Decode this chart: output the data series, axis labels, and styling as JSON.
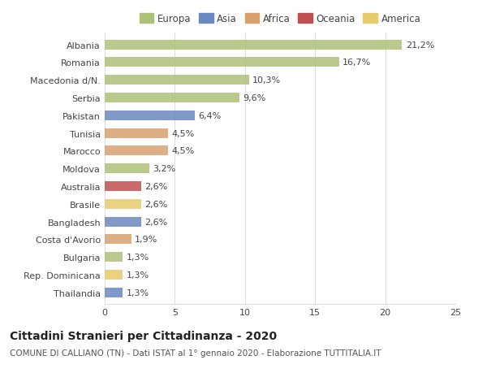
{
  "countries": [
    "Albania",
    "Romania",
    "Macedonia d/N.",
    "Serbia",
    "Pakistan",
    "Tunisia",
    "Marocco",
    "Moldova",
    "Australia",
    "Brasile",
    "Bangladesh",
    "Costa d'Avorio",
    "Bulgaria",
    "Rep. Dominicana",
    "Thailandia"
  ],
  "values": [
    21.2,
    16.7,
    10.3,
    9.6,
    6.4,
    4.5,
    4.5,
    3.2,
    2.6,
    2.6,
    2.6,
    1.9,
    1.3,
    1.3,
    1.3
  ],
  "labels": [
    "21,2%",
    "16,7%",
    "10,3%",
    "9,6%",
    "6,4%",
    "4,5%",
    "4,5%",
    "3,2%",
    "2,6%",
    "2,6%",
    "2,6%",
    "1,9%",
    "1,3%",
    "1,3%",
    "1,3%"
  ],
  "colors": [
    "#adc178",
    "#adc178",
    "#adc178",
    "#adc178",
    "#6b88c0",
    "#d9a06e",
    "#d9a06e",
    "#adc178",
    "#bf5050",
    "#e8cb6a",
    "#6b88c0",
    "#d9a06e",
    "#adc178",
    "#e8cb6a",
    "#6b88c0"
  ],
  "legend": [
    {
      "label": "Europa",
      "color": "#adc178"
    },
    {
      "label": "Asia",
      "color": "#6b88c0"
    },
    {
      "label": "Africa",
      "color": "#d9a06e"
    },
    {
      "label": "Oceania",
      "color": "#bf5050"
    },
    {
      "label": "America",
      "color": "#e8cb6a"
    }
  ],
  "title": "Cittadini Stranieri per Cittadinanza - 2020",
  "subtitle": "COMUNE DI CALLIANO (TN) - Dati ISTAT al 1° gennaio 2020 - Elaborazione TUTTITALIA.IT",
  "xlim": [
    0,
    25
  ],
  "xticks": [
    0,
    5,
    10,
    15,
    20,
    25
  ],
  "bg_color": "#ffffff",
  "bar_height": 0.55,
  "grid_color": "#dddddd",
  "label_fontsize": 8.0,
  "tick_fontsize": 8.0,
  "legend_fontsize": 8.5,
  "title_fontsize": 10,
  "subtitle_fontsize": 7.5
}
